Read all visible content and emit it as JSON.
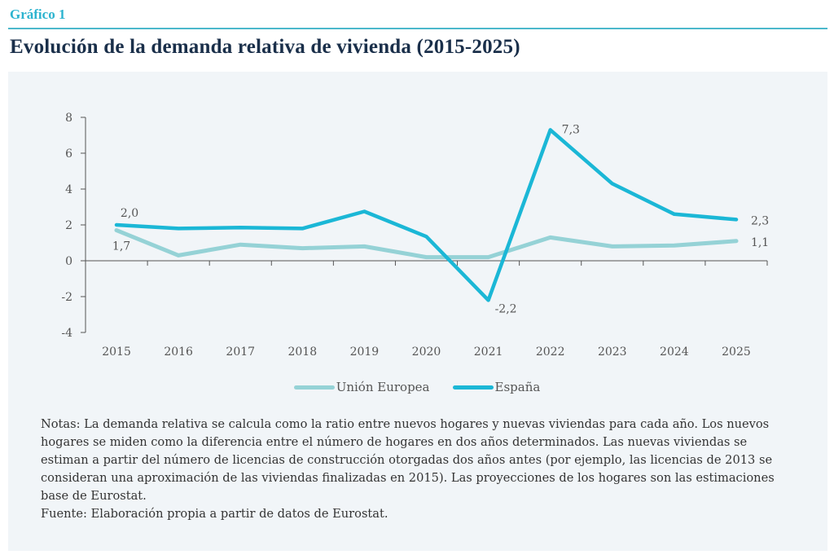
{
  "header": {
    "kicker": "Gráfico 1",
    "title": "Evolución de la demanda relativa de vivienda (2015-2025)"
  },
  "colors": {
    "accent": "#2bb3cf",
    "title": "#1a2f4a",
    "panel_bg": "#f1f5f8",
    "espana": "#1bb7d6",
    "ue": "#95d2d6"
  },
  "chart_data": {
    "type": "line",
    "title": "Evolución de la demanda relativa de vivienda (2015-2025)",
    "xlabel": "",
    "ylabel": "",
    "categories": [
      "2015",
      "2016",
      "2017",
      "2018",
      "2019",
      "2020",
      "2021",
      "2022",
      "2023",
      "2024",
      "2025"
    ],
    "ylim": [
      -4,
      8
    ],
    "yticks": [
      -4,
      -2,
      0,
      2,
      4,
      6,
      8
    ],
    "ytick_labels": [
      "-4",
      "-2",
      "0",
      "2",
      "4",
      "6",
      "8"
    ],
    "grid": false,
    "legend_position": "bottom",
    "series": [
      {
        "name": "Unión Europea",
        "color": "#95d2d6",
        "values": [
          1.7,
          0.3,
          0.9,
          0.7,
          0.8,
          0.2,
          0.2,
          1.3,
          0.8,
          0.85,
          1.1
        ]
      },
      {
        "name": "España",
        "color": "#1bb7d6",
        "values": [
          2.0,
          1.8,
          1.85,
          1.8,
          2.75,
          1.35,
          -2.2,
          7.3,
          4.3,
          2.6,
          2.3
        ]
      }
    ],
    "annotations": [
      {
        "series": "España",
        "category": "2015",
        "text": "2,0"
      },
      {
        "series": "Unión Europea",
        "category": "2015",
        "text": "1,7"
      },
      {
        "series": "España",
        "category": "2021",
        "text": "-2,2"
      },
      {
        "series": "España",
        "category": "2022",
        "text": "7,3"
      },
      {
        "series": "España",
        "category": "2025",
        "text": "2,3"
      },
      {
        "series": "Unión Europea",
        "category": "2025",
        "text": "1,1"
      }
    ]
  },
  "notes": {
    "text": "Notas: La demanda relativa se calcula como la ratio entre nuevos hogares y nuevas viviendas para cada año. Los nuevos hogares se miden como la diferencia entre el número de hogares en dos años determinados. Las nuevas viviendas se estiman a partir del número de licencias de construcción otorgadas dos años antes (por ejemplo, las licencias de 2013 se consideran una aproximación de las viviendas finalizadas en 2015). Las proyecciones de los hogares son las estimaciones base de Eurostat.",
    "source": "Fuente: Elaboración propia a partir de datos de Eurostat."
  }
}
